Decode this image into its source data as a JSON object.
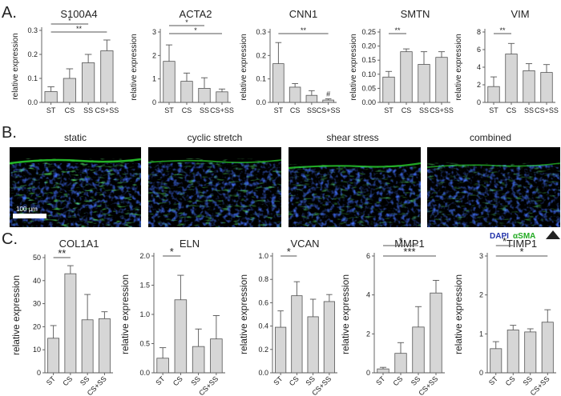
{
  "panels": {
    "a": "A.",
    "b": "B.",
    "c": "C."
  },
  "micrographs": {
    "labels": [
      "static",
      "cyclic stretch",
      "shear stress",
      "combined"
    ],
    "scale_bar": "100 μm",
    "legend_dapi": "DAPI",
    "legend_sma": "αSMA",
    "arrow_icon": "triangle-up-icon"
  },
  "chart_data": [
    {
      "type": "bar",
      "title": "S100A4",
      "ylabel": "relative expression",
      "categories": [
        "ST",
        "CS",
        "SS",
        "CS+SS"
      ],
      "values": [
        0.045,
        0.1,
        0.165,
        0.215
      ],
      "errors": [
        0.02,
        0.04,
        0.035,
        0.045
      ],
      "ylim": [
        0,
        0.3
      ],
      "yticks": [
        "0.0",
        "0.1",
        "0.2",
        "0.3"
      ],
      "significance": [
        {
          "from": 0,
          "to": 2,
          "label": "*"
        },
        {
          "from": 0,
          "to": 3,
          "label": "**"
        }
      ]
    },
    {
      "type": "bar",
      "title": "ACTA2",
      "ylabel": "relative expression",
      "categories": [
        "ST",
        "CS",
        "SS",
        "CS+SS"
      ],
      "values": [
        1.75,
        0.9,
        0.6,
        0.45
      ],
      "errors": [
        0.7,
        0.35,
        0.45,
        0.12
      ],
      "ylim": [
        0,
        3
      ],
      "yticks": [
        "0",
        "1",
        "2",
        "3"
      ],
      "significance": [
        {
          "from": 0,
          "to": 2,
          "label": "*"
        },
        {
          "from": 0,
          "to": 3,
          "label": "*"
        }
      ]
    },
    {
      "type": "bar",
      "title": "CNN1",
      "ylabel": "relative expression",
      "categories": [
        "ST",
        "CS",
        "SS",
        "CS+SS"
      ],
      "values": [
        0.165,
        0.065,
        0.03,
        0.01
      ],
      "errors": [
        0.09,
        0.015,
        0.02,
        0.005
      ],
      "ylim": [
        0,
        0.3
      ],
      "yticks": [
        "0.0",
        "0.1",
        "0.2",
        "0.3"
      ],
      "significance": [
        {
          "from": 0,
          "to": 3,
          "label": "**"
        }
      ],
      "point_marks": [
        {
          "index": 3,
          "label": "#"
        }
      ]
    },
    {
      "type": "bar",
      "title": "SMTN",
      "ylabel": "relative expression",
      "categories": [
        "ST",
        "CS",
        "SS",
        "CS+SS"
      ],
      "values": [
        0.09,
        0.18,
        0.135,
        0.16
      ],
      "errors": [
        0.02,
        0.01,
        0.045,
        0.02
      ],
      "ylim": [
        0,
        0.25
      ],
      "yticks": [
        "0.00",
        "0.05",
        "0.10",
        "0.15",
        "0.20",
        "0.25"
      ],
      "significance": [
        {
          "from": 0,
          "to": 1,
          "label": "**"
        }
      ]
    },
    {
      "type": "bar",
      "title": "VIM",
      "ylabel": "relative expression",
      "categories": [
        "ST",
        "CS",
        "SS",
        "CS+SS"
      ],
      "values": [
        1.8,
        5.5,
        3.6,
        3.4
      ],
      "errors": [
        1.1,
        1.2,
        0.8,
        0.9
      ],
      "ylim": [
        0,
        8
      ],
      "yticks": [
        "0",
        "2",
        "4",
        "6",
        "8"
      ],
      "significance": [
        {
          "from": 0,
          "to": 1,
          "label": "**"
        }
      ]
    },
    {
      "type": "bar",
      "title": "COL1A1",
      "ylabel": "relative expression",
      "categories": [
        "ST",
        "CS",
        "SS",
        "CS+SS"
      ],
      "values": [
        15,
        43,
        23,
        23.5
      ],
      "errors": [
        5.5,
        3.5,
        11,
        3
      ],
      "ylim": [
        0,
        50
      ],
      "yticks": [
        "0",
        "10",
        "20",
        "30",
        "40",
        "50"
      ],
      "significance": [
        {
          "from": 0,
          "to": 1,
          "label": "**"
        }
      ]
    },
    {
      "type": "bar",
      "title": "ELN",
      "ylabel": "relative expression",
      "categories": [
        "ST",
        "CS",
        "SS",
        "CS+SS"
      ],
      "values": [
        0.25,
        1.25,
        0.45,
        0.58
      ],
      "errors": [
        0.18,
        0.42,
        0.3,
        0.4
      ],
      "ylim": [
        0,
        2.0
      ],
      "yticks": [
        "0.0",
        "0.5",
        "1.0",
        "1.5",
        "2.0"
      ],
      "significance": [
        {
          "from": 0,
          "to": 1,
          "label": "*"
        }
      ]
    },
    {
      "type": "bar",
      "title": "VCAN",
      "ylabel": "relative expression",
      "categories": [
        "ST",
        "CS",
        "SS",
        "CS+SS"
      ],
      "values": [
        0.39,
        0.66,
        0.48,
        0.61
      ],
      "errors": [
        0.14,
        0.12,
        0.15,
        0.06
      ],
      "ylim": [
        0,
        1.0
      ],
      "yticks": [
        "0.0",
        "0.2",
        "0.4",
        "0.6",
        "0.8",
        "1.0"
      ],
      "significance": [
        {
          "from": 0,
          "to": 1,
          "label": "*"
        }
      ]
    },
    {
      "type": "bar",
      "title": "MMP1",
      "ylabel": "relative expression",
      "categories": [
        "ST",
        "CS",
        "SS",
        "CS+SS"
      ],
      "values": [
        0.2,
        1.0,
        2.35,
        4.1
      ],
      "errors": [
        0.08,
        0.55,
        1.05,
        0.65
      ],
      "ylim": [
        0,
        6
      ],
      "yticks": [
        "0",
        "2",
        "4",
        "6"
      ],
      "significance": [
        {
          "from": 0,
          "to": 2,
          "label": "*"
        },
        {
          "from": 0,
          "to": 3,
          "label": "***"
        }
      ]
    },
    {
      "type": "bar",
      "title": "TIMP1",
      "ylabel": "relative expression",
      "categories": [
        "ST",
        "CS",
        "SS",
        "CS+SS"
      ],
      "values": [
        0.62,
        1.1,
        1.05,
        1.3
      ],
      "errors": [
        0.18,
        0.12,
        0.08,
        0.32
      ],
      "ylim": [
        0,
        3
      ],
      "yticks": [
        "0",
        "1",
        "2",
        "3"
      ],
      "significance": [
        {
          "from": 0,
          "to": 1,
          "label": "*"
        },
        {
          "from": 0,
          "to": 3,
          "label": "*"
        }
      ]
    }
  ]
}
